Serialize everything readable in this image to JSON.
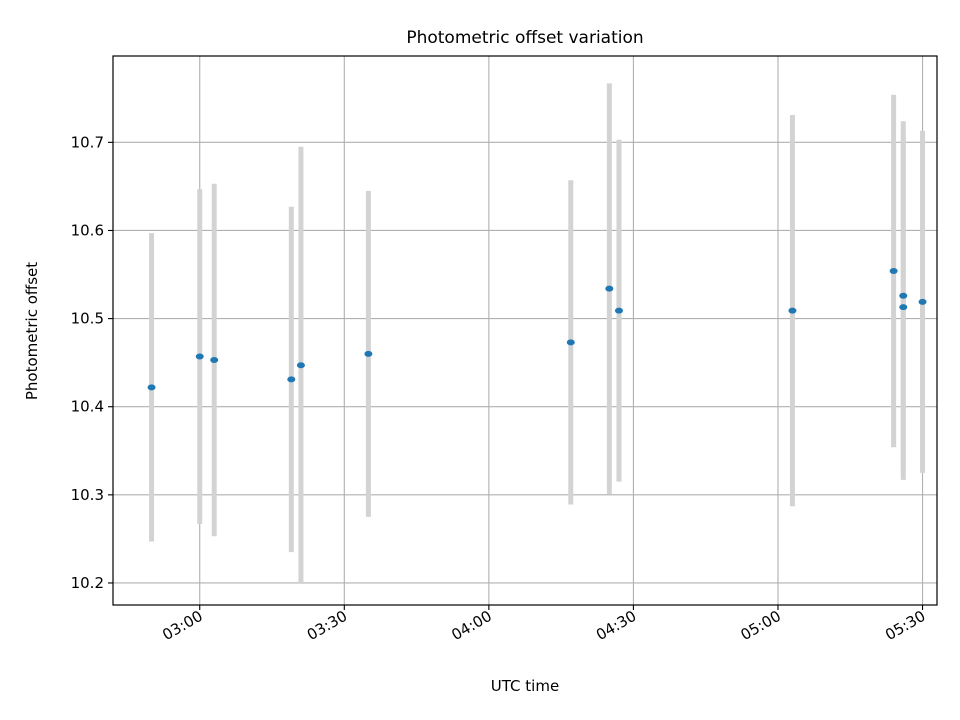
{
  "chart_data": {
    "type": "scatter",
    "title": "Photometric offset variation",
    "xlabel": "UTC time",
    "ylabel": "Photometric offset",
    "x_tick_labels": [
      "03:00",
      "03:30",
      "04:00",
      "04:30",
      "05:00",
      "05:30"
    ],
    "x_ticks": [
      "03:00",
      "03:30",
      "04:00",
      "04:30",
      "05:00",
      "05:30"
    ],
    "y_ticks": [
      10.2,
      10.3,
      10.4,
      10.5,
      10.6,
      10.7
    ],
    "y_tick_labels": [
      "10.2",
      "10.3",
      "10.4",
      "10.5",
      "10.6",
      "10.7"
    ],
    "xlim": [
      "02:42",
      "05:33"
    ],
    "ylim": [
      10.175,
      10.798
    ],
    "grid": true,
    "colors": {
      "point": "#1f77b4",
      "errorbar": "#d3d3d3",
      "grid": "#b0b0b0"
    },
    "points": [
      {
        "time": "02:50",
        "y": 10.422,
        "err": 0.175
      },
      {
        "time": "03:00",
        "y": 10.457,
        "err": 0.19
      },
      {
        "time": "03:03",
        "y": 10.453,
        "err": 0.2
      },
      {
        "time": "03:19",
        "y": 10.431,
        "err": 0.196
      },
      {
        "time": "03:21",
        "y": 10.447,
        "err": 0.248
      },
      {
        "time": "03:35",
        "y": 10.46,
        "err": 0.185
      },
      {
        "time": "04:17",
        "y": 10.473,
        "err": 0.184
      },
      {
        "time": "04:25",
        "y": 10.534,
        "err": 0.233
      },
      {
        "time": "04:27",
        "y": 10.509,
        "err": 0.194
      },
      {
        "time": "05:03",
        "y": 10.509,
        "err": 0.222
      },
      {
        "time": "05:24",
        "y": 10.554,
        "err": 0.2
      },
      {
        "time": "05:26",
        "y": 10.526,
        "err": 0.198
      },
      {
        "time": "05:26",
        "y": 10.513,
        "err": 0.196
      },
      {
        "time": "05:30",
        "y": 10.519,
        "err": 0.194
      }
    ]
  }
}
